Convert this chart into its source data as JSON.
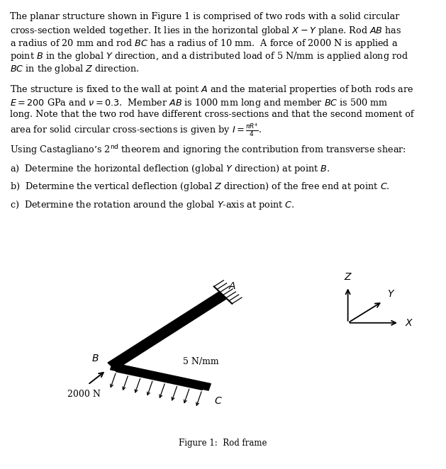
{
  "title": "Figure 1:  Rod frame",
  "background_color": "#ffffff",
  "fig_width": 6.29,
  "fig_height": 6.62,
  "text_fontsize": 9.2,
  "caption_fontsize": 8.5,
  "p1_lines": [
    "The planar structure shown in Figure 1 is comprised of two rods with a solid circular",
    "cross-section welded together. It lies in the horizontal global $X - Y$ plane. Rod $AB$ has",
    "a radius of 20 mm and rod $BC$ has a radius of 10 mm.  A force of 2000 N is applied a",
    "point $B$ in the global $Y$ direction, and a distributed load of 5 N/mm is applied along rod",
    "$BC$ in the global $Z$ direction."
  ],
  "p2_lines": [
    "The structure is fixed to the wall at point $A$ and the material properties of both rods are",
    "$E = 200$ GPa and $\\nu = 0.3$.  Member $AB$ is 1000 mm long and member $BC$ is 500 mm",
    "long. Note that the two rod have different cross-sections and that the second moment of",
    "area for solid circular cross-sections is given by $I = \\frac{\\pi R^4}{4}$."
  ],
  "p3": "Using Castagliano’s 2$^\\mathrm{nd}$ theorem and ignoring the contribution from transverse shear:",
  "qa": "a)  Determine the horizontal deflection (global $Y$ direction) at point $B$.",
  "qb": "b)  Determine the vertical deflection (global $Z$ direction) of the free end at point $C$.",
  "qc": "c)  Determine the rotation around the global $Y$-axis at point $C$."
}
